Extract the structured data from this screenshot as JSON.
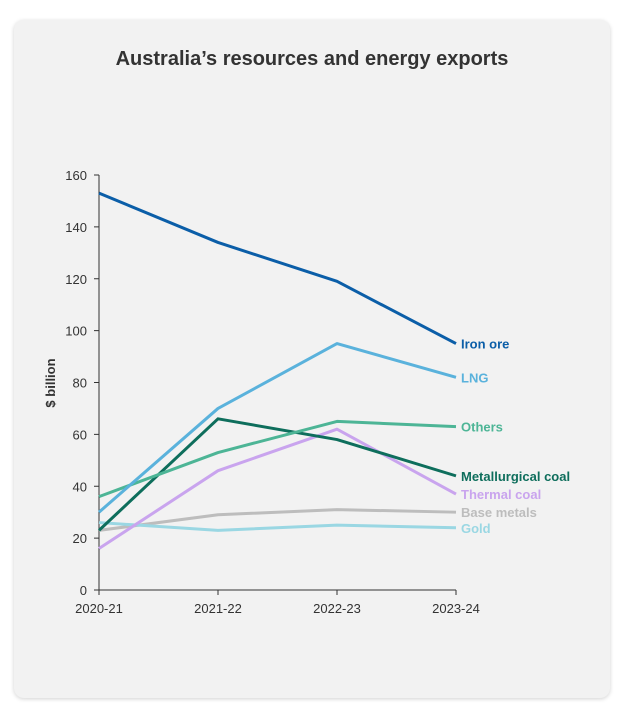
{
  "chart_data": {
    "type": "line",
    "title": "Australia’s resources and energy exports",
    "xlabel": "",
    "ylabel": "$ billion",
    "categories": [
      "2020-21",
      "2021-22",
      "2022-23",
      "2023-24"
    ],
    "ylim": [
      0,
      160
    ],
    "yticks": [
      0,
      20,
      40,
      60,
      80,
      100,
      120,
      140,
      160
    ],
    "grid": false,
    "legend": "inline labels at line ends (right)",
    "series": [
      {
        "name": "Iron ore",
        "color": "#0b5ea8",
        "values": [
          153,
          134,
          119,
          95
        ]
      },
      {
        "name": "LNG",
        "color": "#5ab2dc",
        "values": [
          30,
          70,
          95,
          82
        ]
      },
      {
        "name": "Others",
        "color": "#4db596",
        "values": [
          36,
          53,
          65,
          63
        ]
      },
      {
        "name": "Metallurgical coal",
        "color": "#0e6e5c",
        "values": [
          23,
          66,
          58,
          44
        ]
      },
      {
        "name": "Thermal coal",
        "color": "#c9a4ee",
        "values": [
          16,
          46,
          62,
          37
        ]
      },
      {
        "name": "Base metals",
        "color": "#bdbdbd",
        "values": [
          23,
          29,
          31,
          30
        ]
      },
      {
        "name": "Gold",
        "color": "#9ad7e3",
        "values": [
          26,
          23,
          25,
          24
        ]
      }
    ]
  }
}
